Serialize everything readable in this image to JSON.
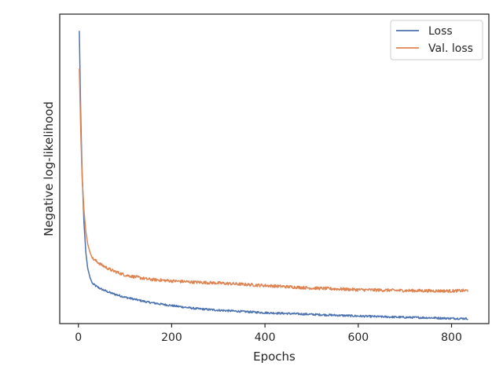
{
  "chart_data": {
    "type": "line",
    "title": "",
    "xlabel": "Epochs",
    "ylabel": "Negative log-likelihood",
    "xlim": [
      -40,
      880
    ],
    "ylim": [
      0.5,
      4.2
    ],
    "xticks": [
      0,
      200,
      400,
      600,
      800
    ],
    "show_y_ticks": false,
    "grid": false,
    "legend": "top-right",
    "series": [
      {
        "name": "Loss",
        "color": "#4c72b0",
        "noise": 0.012,
        "points": [
          [
            2,
            4.0
          ],
          [
            5,
            3.0
          ],
          [
            8,
            2.3
          ],
          [
            12,
            1.7
          ],
          [
            16,
            1.35
          ],
          [
            20,
            1.16
          ],
          [
            25,
            1.05
          ],
          [
            30,
            0.98
          ],
          [
            40,
            0.94
          ],
          [
            50,
            0.91
          ],
          [
            70,
            0.865
          ],
          [
            100,
            0.815
          ],
          [
            150,
            0.755
          ],
          [
            200,
            0.715
          ],
          [
            250,
            0.68
          ],
          [
            300,
            0.66
          ],
          [
            350,
            0.645
          ],
          [
            400,
            0.63
          ],
          [
            450,
            0.62
          ],
          [
            500,
            0.61
          ],
          [
            550,
            0.6
          ],
          [
            600,
            0.59
          ],
          [
            650,
            0.582
          ],
          [
            700,
            0.575
          ],
          [
            750,
            0.57
          ],
          [
            800,
            0.562
          ],
          [
            835,
            0.56
          ]
        ]
      },
      {
        "name": "Val. loss",
        "color": "#dd8452",
        "noise": 0.018,
        "points": [
          [
            2,
            3.55
          ],
          [
            5,
            2.8
          ],
          [
            8,
            2.25
          ],
          [
            12,
            1.85
          ],
          [
            16,
            1.6
          ],
          [
            20,
            1.45
          ],
          [
            25,
            1.35
          ],
          [
            30,
            1.28
          ],
          [
            40,
            1.24
          ],
          [
            50,
            1.2
          ],
          [
            70,
            1.14
          ],
          [
            100,
            1.08
          ],
          [
            150,
            1.03
          ],
          [
            200,
            1.01
          ],
          [
            250,
            0.995
          ],
          [
            300,
            0.985
          ],
          [
            350,
            0.97
          ],
          [
            400,
            0.955
          ],
          [
            450,
            0.94
          ],
          [
            500,
            0.925
          ],
          [
            550,
            0.915
          ],
          [
            600,
            0.905
          ],
          [
            650,
            0.9
          ],
          [
            700,
            0.895
          ],
          [
            750,
            0.892
          ],
          [
            800,
            0.89
          ],
          [
            835,
            0.895
          ]
        ]
      }
    ]
  }
}
